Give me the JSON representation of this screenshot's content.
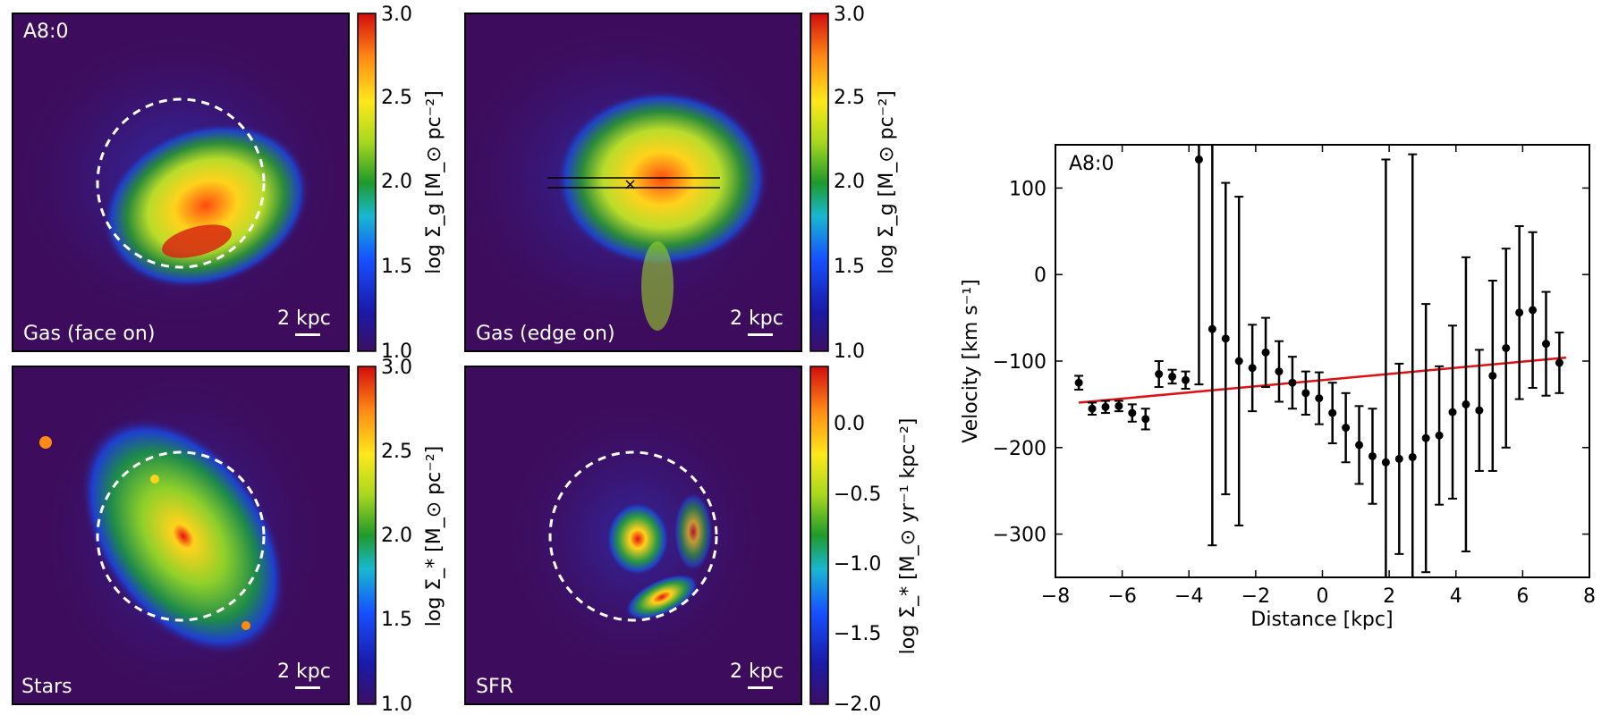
{
  "colors": {
    "background_map": "#3d0c5c",
    "fit_line": "#e01010",
    "ring": "#ffffff"
  },
  "panels": [
    {
      "id": "gas-face-on",
      "tag": "A8:0",
      "label": "Gas (face on)",
      "scale": "2 kpc",
      "cbar_label": "log Σ_g [M_⊙ pc⁻²]",
      "ticks": [
        "1.0",
        "1.5",
        "2.0",
        "2.5",
        "3.0"
      ],
      "ring": true
    },
    {
      "id": "gas-edge-on",
      "tag": "",
      "label": "Gas (edge on)",
      "scale": "2 kpc",
      "cbar_label": "log Σ_g [M_⊙ pc⁻²]",
      "ticks": [
        "1.0",
        "1.5",
        "2.0",
        "2.5",
        "3.0"
      ],
      "ring": false
    },
    {
      "id": "stars",
      "tag": "",
      "label": "Stars",
      "scale": "2 kpc",
      "cbar_label": "log Σ_* [M_⊙ pc⁻²]",
      "ticks": [
        "1.0",
        "1.5",
        "2.0",
        "2.5",
        "3.0"
      ],
      "ring": true
    },
    {
      "id": "sfr",
      "tag": "",
      "label": "SFR",
      "scale": "2 kpc",
      "cbar_label": "log Σ̇_* [M_⊙ yr⁻¹ kpc⁻²]",
      "ticks": [
        "−2.0",
        "−1.5",
        "−1.0",
        "−0.5",
        "0.0"
      ],
      "ring": true
    }
  ],
  "chart_data": {
    "type": "scatter",
    "title": "A8:0",
    "xlabel": "Distance [kpc]",
    "ylabel": "Velocity [km s⁻¹]",
    "xlim": [
      -8,
      8
    ],
    "ylim": [
      -350,
      150
    ],
    "xticks": [
      -8,
      -6,
      -4,
      -2,
      0,
      2,
      4,
      6,
      8
    ],
    "yticks": [
      -300,
      -200,
      -100,
      0,
      100
    ],
    "xtick_labels": [
      "−8",
      "−6",
      "−4",
      "−2",
      "0",
      "2",
      "4",
      "6",
      "8"
    ],
    "ytick_labels": [
      "−300",
      "−200",
      "−100",
      "0",
      "100"
    ],
    "series": [
      {
        "name": "velocity",
        "x": [
          -7.3,
          -6.9,
          -6.5,
          -6.1,
          -5.7,
          -5.3,
          -4.9,
          -4.5,
          -4.1,
          -3.7,
          -3.3,
          -2.9,
          -2.5,
          -2.1,
          -1.7,
          -1.3,
          -0.9,
          -0.5,
          -0.1,
          0.3,
          0.7,
          1.1,
          1.5,
          1.9,
          2.3,
          2.7,
          3.1,
          3.5,
          3.9,
          4.3,
          4.7,
          5.1,
          5.5,
          5.9,
          6.3,
          6.7,
          7.1
        ],
        "y": [
          -125,
          -155,
          -153,
          -152,
          -160,
          -167,
          -115,
          -118,
          -122,
          133,
          -63,
          -74,
          -100,
          -108,
          -90,
          -112,
          -125,
          -137,
          -143,
          -160,
          -177,
          -197,
          -210,
          -217,
          -213,
          -211,
          -189,
          -186,
          -159,
          -150,
          -157,
          -117,
          -85,
          -44,
          -41,
          -80,
          -102
        ],
        "err": [
          8,
          7,
          7,
          6,
          10,
          12,
          15,
          8,
          10,
          260,
          250,
          180,
          190,
          50,
          40,
          35,
          30,
          25,
          30,
          35,
          40,
          45,
          55,
          350,
          110,
          350,
          155,
          80,
          100,
          170,
          70,
          110,
          115,
          100,
          90,
          60,
          35
        ]
      }
    ],
    "fit_line": {
      "x": [
        -7.3,
        7.3
      ],
      "y": [
        -148,
        -96
      ]
    }
  }
}
